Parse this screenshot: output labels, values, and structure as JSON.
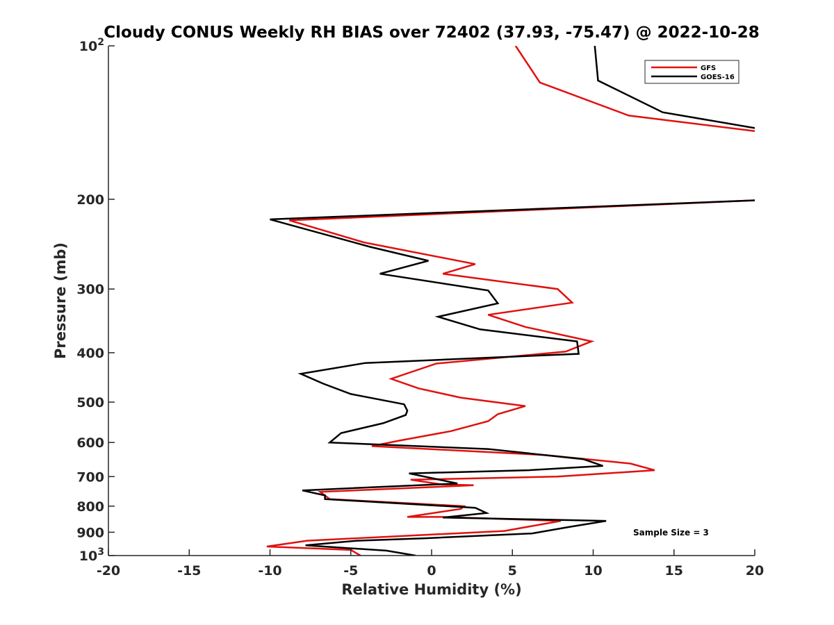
{
  "chart_data": {
    "type": "line",
    "title": "Cloudy CONUS Weekly RH BIAS over 72402 (37.93, -75.47) @ 2022-10-28",
    "xlabel": "Relative Humidity (%)",
    "ylabel": "Pressure (mb)",
    "xlim": [
      -20,
      20
    ],
    "ylim": [
      100,
      1000
    ],
    "y_scale": "log",
    "y_direction": "reversed",
    "grid": false,
    "legend_position": "top-right",
    "x_ticks": [
      -20,
      -15,
      -10,
      -5,
      0,
      5,
      10,
      15,
      20
    ],
    "x_tick_labels": [
      "-20",
      "-15",
      "-10",
      "-5",
      "0",
      "5",
      "10",
      "15",
      "20"
    ],
    "y_ticks": [
      100,
      200,
      300,
      400,
      500,
      600,
      700,
      800,
      900,
      1000
    ],
    "y_tick_labels": [
      {
        "base": "10",
        "exp": "2"
      },
      {
        "base": "200",
        "exp": ""
      },
      {
        "base": "300",
        "exp": ""
      },
      {
        "base": "400",
        "exp": ""
      },
      {
        "base": "500",
        "exp": ""
      },
      {
        "base": "600",
        "exp": ""
      },
      {
        "base": "700",
        "exp": ""
      },
      {
        "base": "800",
        "exp": ""
      },
      {
        "base": "900",
        "exp": ""
      },
      {
        "base": "10",
        "exp": "3"
      }
    ],
    "annotation": "Sample Size = 3",
    "series": [
      {
        "name": "GFS",
        "color": "#e0110f",
        "points": [
          [
            5.2,
            100
          ],
          [
            6.7,
            118
          ],
          [
            12.2,
            137
          ],
          [
            20.0,
            147
          ],
          [
            null,
            null
          ],
          [
            20.0,
            201
          ],
          [
            -8.8,
            220
          ],
          [
            -4.2,
            243
          ],
          [
            2.7,
            268
          ],
          [
            0.7,
            280
          ],
          [
            7.8,
            300
          ],
          [
            8.7,
            319
          ],
          [
            3.5,
            337
          ],
          [
            5.8,
            356
          ],
          [
            9.9,
            380
          ],
          [
            8.3,
            398
          ],
          [
            0.3,
            420
          ],
          [
            -2.5,
            450
          ],
          [
            -0.8,
            470
          ],
          [
            1.8,
            490
          ],
          [
            5.8,
            509
          ],
          [
            4.1,
            528
          ],
          [
            3.5,
            545
          ],
          [
            1.2,
            570
          ],
          [
            -2.0,
            595
          ],
          [
            -3.7,
            610
          ],
          [
            7.0,
            635
          ],
          [
            12.3,
            660
          ],
          [
            13.8,
            680
          ],
          [
            7.8,
            700
          ],
          [
            -1.3,
            710
          ],
          [
            0.6,
            725
          ],
          [
            2.6,
            728
          ],
          [
            -6.9,
            750
          ],
          [
            -6.3,
            775
          ],
          [
            2.0,
            800
          ],
          [
            1.8,
            810
          ],
          [
            -1.5,
            840
          ],
          [
            0.6,
            840
          ],
          [
            8.0,
            855
          ],
          [
            4.5,
            895
          ],
          [
            -7.7,
            935
          ],
          [
            -10.2,
            960
          ],
          [
            -5.0,
            975
          ],
          [
            -4.4,
            1000
          ]
        ]
      },
      {
        "name": "GOES-16",
        "color": "#000000",
        "points": [
          [
            10.1,
            100
          ],
          [
            10.3,
            117
          ],
          [
            14.3,
            135
          ],
          [
            20.0,
            145
          ],
          [
            null,
            null
          ],
          [
            20.0,
            201
          ],
          [
            -10.0,
            219
          ],
          [
            -3.8,
            248
          ],
          [
            -0.2,
            264
          ],
          [
            -3.2,
            280
          ],
          [
            3.5,
            302
          ],
          [
            4.1,
            320
          ],
          [
            0.4,
            340
          ],
          [
            3.0,
            360
          ],
          [
            9.0,
            380
          ],
          [
            9.1,
            402
          ],
          [
            -4.1,
            419
          ],
          [
            -8.1,
            440
          ],
          [
            -6.7,
            460
          ],
          [
            -5.0,
            482
          ],
          [
            -1.7,
            505
          ],
          [
            -1.5,
            520
          ],
          [
            -1.6,
            530
          ],
          [
            -3.0,
            550
          ],
          [
            -5.6,
            575
          ],
          [
            -6.3,
            600
          ],
          [
            3.5,
            618
          ],
          [
            9.4,
            647
          ],
          [
            10.6,
            667
          ],
          [
            6.0,
            680
          ],
          [
            -1.4,
            690
          ],
          [
            1.6,
            722
          ],
          [
            -8.0,
            745
          ],
          [
            -6.6,
            762
          ],
          [
            -6.6,
            775
          ],
          [
            2.7,
            806
          ],
          [
            3.4,
            825
          ],
          [
            0.7,
            842
          ],
          [
            10.8,
            855
          ],
          [
            8.5,
            879
          ],
          [
            6.2,
            905
          ],
          [
            -0.4,
            925
          ],
          [
            -4.6,
            935
          ],
          [
            -7.8,
            955
          ],
          [
            -2.8,
            978
          ],
          [
            -1.0,
            1000
          ]
        ]
      }
    ]
  }
}
